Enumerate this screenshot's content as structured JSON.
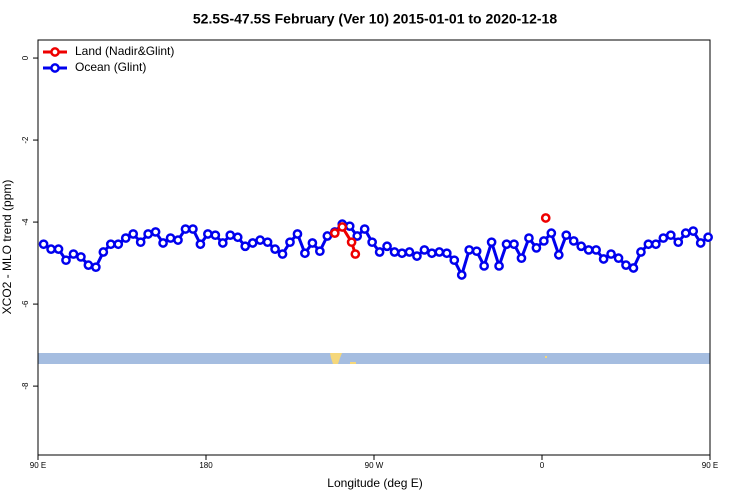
{
  "chart_data": {
    "type": "line",
    "title": "52.5S-47.5S February (Ver 10)   2015-01-01 to 2020-12-18",
    "xlabel": "Longitude (deg E)",
    "ylabel": "XCO2 - MLO trend (ppm)",
    "xlim": [
      90,
      450
    ],
    "xticks": [
      {
        "value": 90,
        "label": "90 E"
      },
      {
        "value": 180,
        "label": "180"
      },
      {
        "value": 270,
        "label": "90 W"
      },
      {
        "value": 360,
        "label": "0"
      },
      {
        "value": 450,
        "label": "90 E"
      }
    ],
    "ylim": [
      -9.68,
      0.44
    ],
    "yticks": [
      0,
      -2,
      -4,
      -6,
      -8
    ],
    "legend": "top-left",
    "series": [
      {
        "name": "Land (Nadir&Glint)",
        "color": "#ee0000",
        "x": [
          249,
          253,
          258,
          260,
          300,
          362
        ],
        "values": [
          -4.27,
          -4.12,
          -4.49,
          -4.78,
          null,
          -3.9
        ]
      },
      {
        "name": "Ocean (Glint)",
        "color": "#0000ee",
        "x": [
          93,
          97,
          101,
          105,
          109,
          113,
          117,
          121,
          125,
          129,
          133,
          137,
          141,
          145,
          149,
          153,
          157,
          161,
          165,
          169,
          173,
          177,
          181,
          185,
          189,
          193,
          197,
          201,
          205,
          209,
          213,
          217,
          221,
          225,
          229,
          233,
          237,
          241,
          245,
          249,
          253,
          257,
          261,
          265,
          269,
          273,
          277,
          281,
          285,
          289,
          293,
          297,
          301,
          305,
          309,
          313,
          317,
          321,
          325,
          329,
          333,
          337,
          341,
          345,
          349,
          353,
          357,
          361,
          365,
          369,
          373,
          377,
          381,
          385,
          389,
          393,
          397,
          401,
          405,
          409,
          413,
          417,
          421,
          425,
          429,
          433,
          437,
          441,
          445,
          449
        ],
        "values": [
          -4.54,
          -4.66,
          -4.66,
          -4.93,
          -4.78,
          -4.85,
          -5.05,
          -5.1,
          -4.73,
          -4.54,
          -4.54,
          -4.39,
          -4.29,
          -4.49,
          -4.29,
          -4.24,
          -4.51,
          -4.39,
          -4.44,
          -4.17,
          -4.17,
          -4.54,
          -4.29,
          -4.32,
          -4.51,
          -4.32,
          -4.37,
          -4.59,
          -4.51,
          -4.44,
          -4.49,
          -4.66,
          -4.78,
          -4.49,
          -4.29,
          -4.76,
          -4.51,
          -4.71,
          -4.34,
          -4.24,
          -4.05,
          -4.1,
          -4.34,
          -4.17,
          -4.49,
          -4.73,
          -4.59,
          -4.73,
          -4.76,
          -4.73,
          -4.83,
          -4.68,
          -4.76,
          -4.73,
          -4.76,
          -4.93,
          -5.29,
          -4.68,
          -4.71,
          -5.07,
          -4.49,
          -5.07,
          -4.54,
          -4.54,
          -4.88,
          -4.39,
          -4.63,
          -4.46,
          -4.27,
          -4.8,
          -4.32,
          -4.46,
          -4.59,
          -4.68,
          -4.68,
          -4.9,
          -4.78,
          -4.88,
          -5.05,
          -5.12,
          -4.73,
          -4.54,
          -4.54,
          -4.39,
          -4.32,
          -4.49,
          -4.27,
          -4.22,
          -4.51,
          -4.37
        ]
      }
    ]
  }
}
